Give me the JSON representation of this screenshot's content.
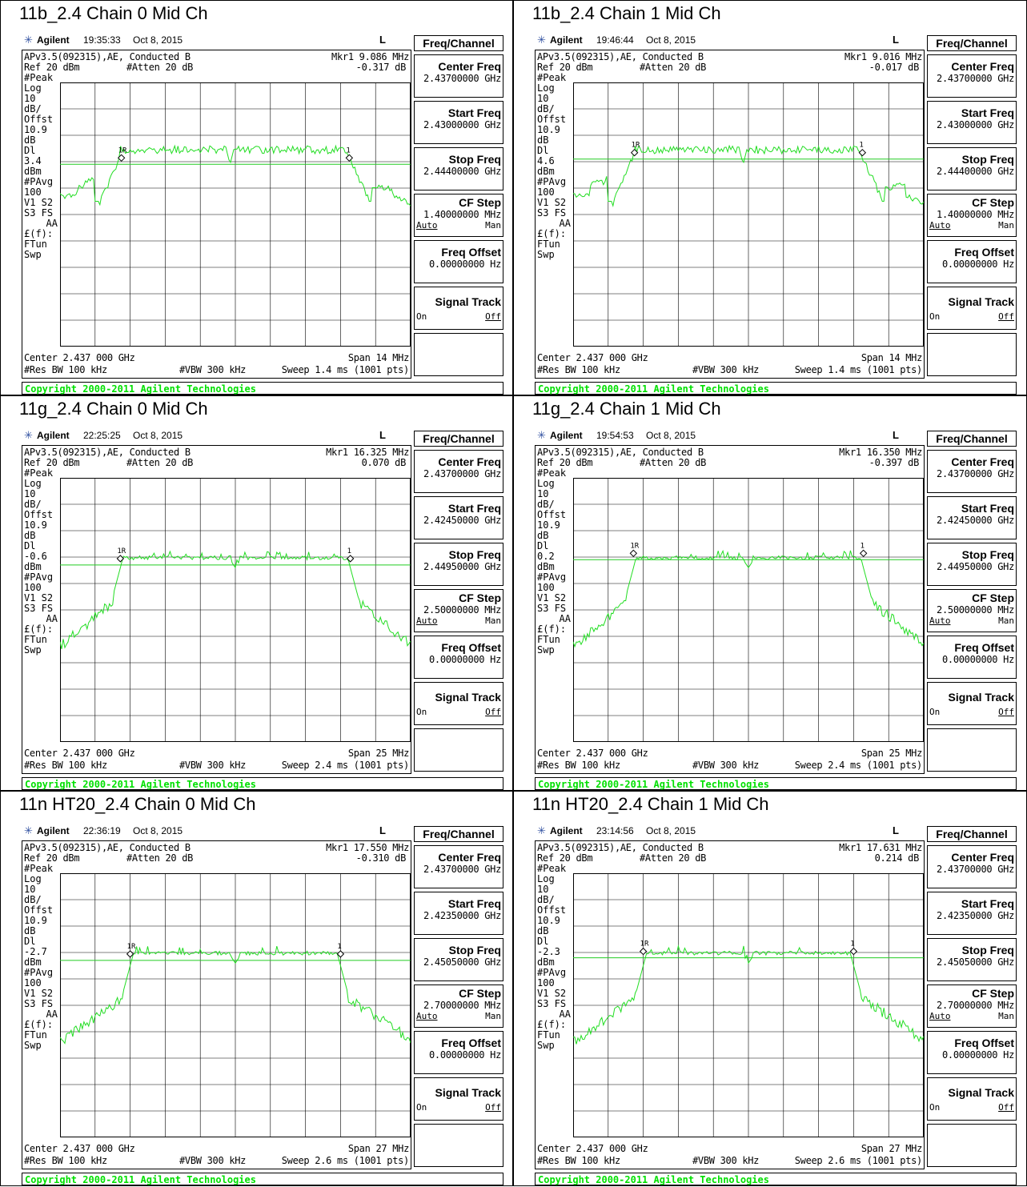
{
  "common": {
    "brand": "Agilent",
    "mode": "L",
    "ref": "Ref 20 dBm",
    "atten": "#Atten 20 dB",
    "center": "Center 2.437 000 GHz",
    "rbw": "#Res BW 100 kHz",
    "vbw": "#VBW 300 kHz",
    "copyright": "Copyright 2000-2011 Agilent Technologies",
    "menu_title": "Freq/Channel",
    "center_freq_label": "Center Freq",
    "center_freq_value": "2.43700000 GHz",
    "start_freq_label": "Start Freq",
    "stop_freq_label": "Stop Freq",
    "cf_step_label": "CF Step",
    "auto_label": "Auto",
    "man_label": "Man",
    "freq_offset_label": "Freq Offset",
    "freq_offset_value": "0.00000000 Hz",
    "signal_track_label": "Signal Track",
    "on_label": "On",
    "off_label": "Off",
    "marker_1r": "1R",
    "marker_1": "1",
    "left_labels": [
      "#Peak",
      "Log",
      "10",
      "dB/",
      "Offst",
      "10.9",
      "dB",
      "Dl",
      "",
      "dBm",
      "#PAvg",
      "100",
      "V1  S2",
      "S3  FS",
      "AA",
      "£(f):",
      "FTun",
      "Swp"
    ]
  },
  "panels": [
    {
      "title": "11b_2.4 Chain 0 Mid Ch",
      "time": "19:35:33",
      "date": "Oct 8, 2015",
      "config": "APv3.5(092315),AE, Conducted B",
      "mkr_freq": "Mkr1  9.086 MHz",
      "mkr_level": "-0.317 dB",
      "dl": "3.4",
      "span": "Span 14 MHz",
      "sweep": "Sweep 1.4 ms (1001 pts)",
      "start_freq": "2.43000000 GHz",
      "stop_freq": "2.44400000 GHz",
      "cf_step": "1.40000000 MHz",
      "trace_type": "b",
      "line_y": 0.31
    },
    {
      "title": "11b_2.4 Chain 1 Mid Ch",
      "time": "19:46:44",
      "date": "Oct 8, 2015",
      "config": "APv3.5(092315),AE, Conducted B",
      "mkr_freq": "Mkr1  9.016 MHz",
      "mkr_level": "-0.017 dB",
      "dl": "4.6",
      "span": "Span 14 MHz",
      "sweep": "Sweep 1.4 ms (1001 pts)",
      "start_freq": "2.43000000 GHz",
      "stop_freq": "2.44400000 GHz",
      "cf_step": "1.40000000 MHz",
      "trace_type": "b",
      "line_y": 0.29
    },
    {
      "title": "11g_2.4 Chain 0 Mid Ch",
      "time": "22:25:25",
      "date": "Oct 8, 2015",
      "config": "APv3.5(092315),AE, Conducted B",
      "mkr_freq": "Mkr1  16.325 MHz",
      "mkr_level": "0.070 dB",
      "dl": "-0.6",
      "span": "Span 25 MHz",
      "sweep": "Sweep 2.4 ms (1001 pts)",
      "start_freq": "2.42450000 GHz",
      "stop_freq": "2.44950000 GHz",
      "cf_step": "2.50000000 MHz",
      "trace_type": "g",
      "line_y": 0.33
    },
    {
      "title": "11g_2.4 Chain 1 Mid Ch",
      "time": "19:54:53",
      "date": "Oct 8, 2015",
      "config": "APv3.5(092315),AE, Conducted B",
      "mkr_freq": "Mkr1  16.350 MHz",
      "mkr_level": "-0.397 dB",
      "dl": "0.2",
      "span": "Span 25 MHz",
      "sweep": "Sweep 2.4 ms (1001 pts)",
      "start_freq": "2.42450000 GHz",
      "stop_freq": "2.44950000 GHz",
      "cf_step": "2.50000000 MHz",
      "trace_type": "g",
      "line_y": 0.31
    },
    {
      "title": "11n HT20_2.4 Chain 0 Mid Ch",
      "time": "22:36:19",
      "date": "Oct 8, 2015",
      "config": "APv3.5(092315),AE, Conducted B",
      "mkr_freq": "Mkr1  17.550 MHz",
      "mkr_level": "-0.310 dB",
      "dl": "-2.7",
      "span": "Span 27 MHz",
      "sweep": "Sweep 2.6 ms (1001 pts)",
      "start_freq": "2.42350000 GHz",
      "stop_freq": "2.45050000 GHz",
      "cf_step": "2.70000000 MHz",
      "trace_type": "n",
      "line_y": 0.33
    },
    {
      "title": "11n HT20_2.4 Chain 1 Mid Ch",
      "time": "23:14:56",
      "date": "Oct 8, 2015",
      "config": "APv3.5(092315),AE, Conducted B",
      "mkr_freq": "Mkr1  17.631 MHz",
      "mkr_level": "0.214 dB",
      "dl": "-2.3",
      "span": "Span 27 MHz",
      "sweep": "Sweep 2.6 ms (1001 pts)",
      "start_freq": "2.42350000 GHz",
      "stop_freq": "2.45050000 GHz",
      "cf_step": "2.70000000 MHz",
      "trace_type": "n",
      "line_y": 0.32
    }
  ],
  "colors": {
    "trace": "#22dd22",
    "line": "#22cc22",
    "grid": "#000000",
    "copyright": "#00e000"
  }
}
